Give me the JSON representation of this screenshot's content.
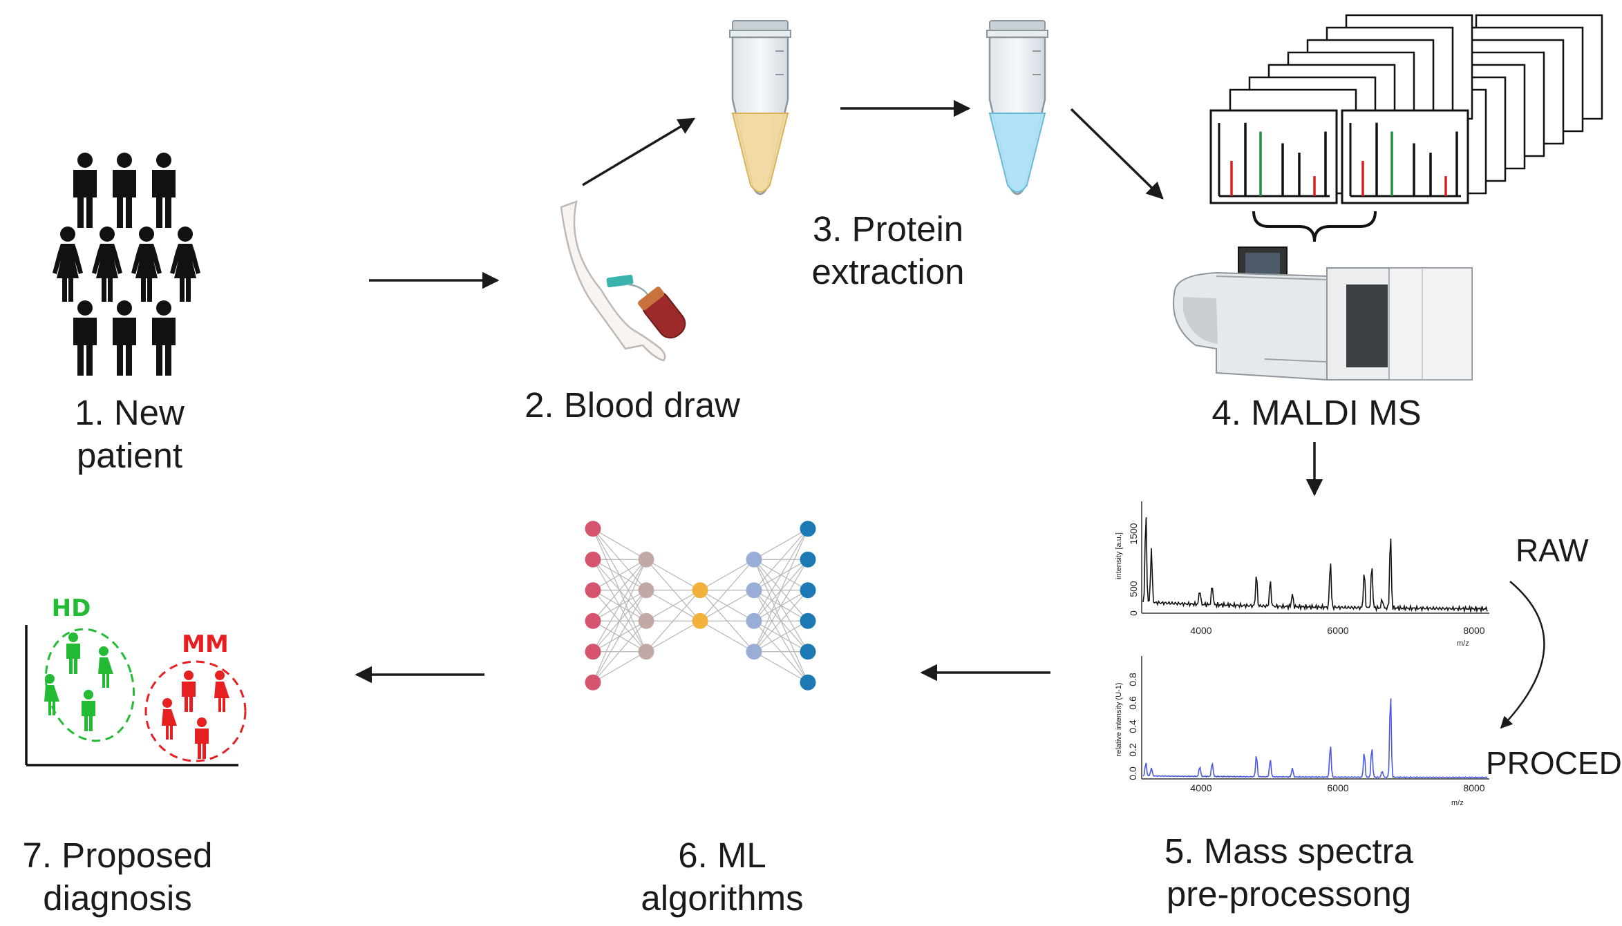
{
  "steps": {
    "s1": {
      "line1": "1. New",
      "line2": "patient"
    },
    "s2": {
      "line1": "2. Blood draw"
    },
    "s3": {
      "line1": "3. Protein",
      "line2": "extraction"
    },
    "s4": {
      "line1": "4. MALDI MS"
    },
    "s5": {
      "line1": "5. Mass spectra",
      "line2": "pre-processong"
    },
    "s6": {
      "line1": "6. ML",
      "line2": "algorithms"
    },
    "s7": {
      "line1": "7. Proposed",
      "line2": "diagnosis"
    }
  },
  "spectra": {
    "raw_label": "RAW",
    "proc_label": "PROCED",
    "top": {
      "ylabel": "intensity [a.u.]",
      "xlabel": "m/z",
      "xticks": [
        "4000",
        "6000",
        "8000"
      ],
      "yticks": [
        "0",
        "500",
        "1500"
      ]
    },
    "bottom": {
      "ylabel": "relative intensity (U-1)",
      "xlabel": "m/z",
      "xticks": [
        "4000",
        "6000",
        "8000"
      ],
      "yticks": [
        "0.0",
        "0.2",
        "0.4",
        "0.6",
        "0.8"
      ]
    }
  },
  "diagnosis": {
    "hd_label": "HD",
    "mm_label": "MM",
    "hd_color": "#22bb33",
    "mm_color": "#e62020"
  },
  "nn": {
    "layers": [
      6,
      4,
      2,
      4,
      6
    ],
    "colors": [
      "#d6546e",
      "#c2a9a6",
      "#f2b13a",
      "#9aadd6",
      "#1c79b4"
    ]
  }
}
